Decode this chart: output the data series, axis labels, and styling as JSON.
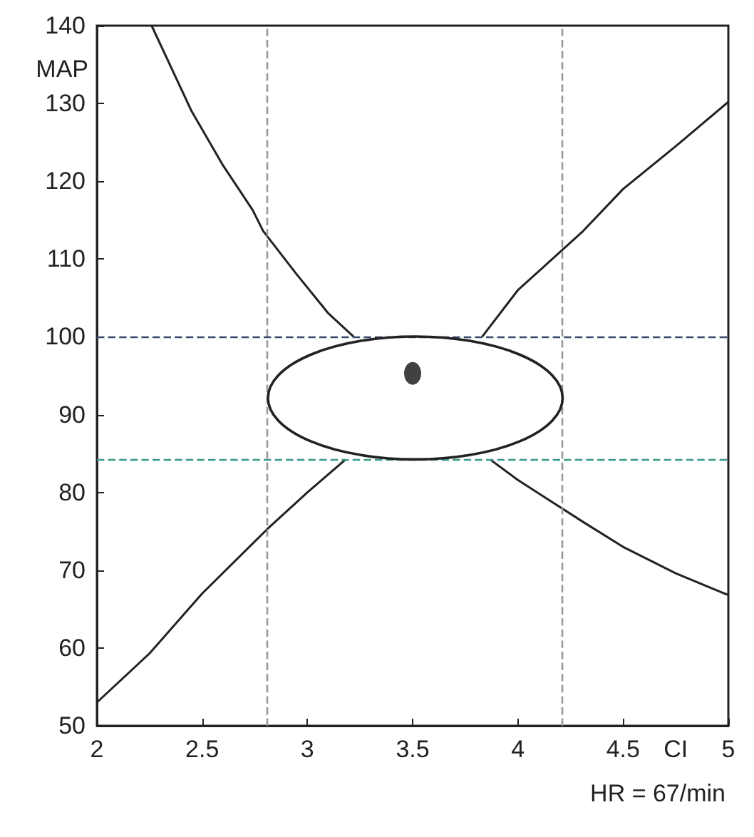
{
  "chart_data": {
    "type": "line",
    "xlabel": "CI",
    "ylabel": "MAP",
    "xlim": [
      2,
      5
    ],
    "xticks": [
      2,
      2.5,
      3,
      3.5,
      4,
      4.5,
      5
    ],
    "ylim": [
      50,
      140
    ],
    "yticks": [
      50,
      60,
      70,
      80,
      90,
      100,
      110,
      120,
      130,
      140
    ],
    "series": [
      {
        "color": "#222222",
        "x": [
          2.26,
          2.45,
          2.6,
          2.74,
          2.79,
          2.95,
          3.1,
          3.22
        ],
        "values": [
          140,
          129,
          122,
          116.3,
          113.6,
          108,
          103,
          100
        ]
      },
      {
        "color": "#222222",
        "x": [
          2,
          2.25,
          2.5,
          2.81,
          3.0,
          3.18
        ],
        "values": [
          53,
          59.3,
          67,
          75.3,
          80,
          84.2
        ]
      },
      {
        "color": "#222222",
        "x": [
          3.83,
          4.0,
          4.31,
          4.5,
          4.75,
          5
        ],
        "values": [
          100,
          106,
          113.6,
          119,
          124.5,
          130.2
        ]
      },
      {
        "color": "#222222",
        "x": [
          3.87,
          4.0,
          4.31,
          4.5,
          4.75,
          5
        ],
        "values": [
          84.2,
          81.6,
          76.2,
          73,
          69.6,
          66.8
        ]
      },
      {
        "type": "scatter",
        "marker": "circle",
        "color": "#111111",
        "x": [
          3.5
        ],
        "values": [
          95.3
        ]
      }
    ],
    "ref_lines": [
      {
        "axis": "x",
        "value": 2.81,
        "color": "#999999",
        "line_style": "dashed"
      },
      {
        "axis": "x",
        "value": 4.21,
        "color": "#999999",
        "line_style": "dashed"
      },
      {
        "axis": "y",
        "value": 100,
        "color": "#3a4a6a",
        "line_style": "dashed"
      },
      {
        "axis": "y",
        "value": 84.2,
        "color": "#3a9a8a",
        "line_style": "dashed"
      }
    ],
    "annotations": [
      "HR = 67/min"
    ],
    "marker": "none",
    "line_style": "solid",
    "grid": false
  }
}
